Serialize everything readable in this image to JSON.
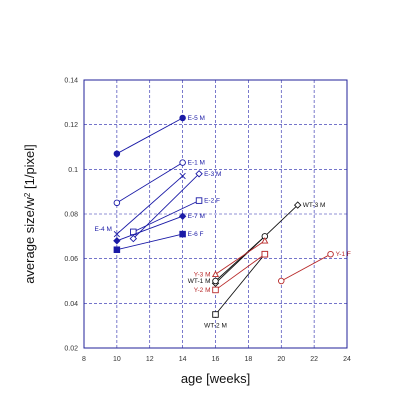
{
  "chart_data": {
    "type": "scatter",
    "xlabel": "age [weeks]",
    "ylabel": "average size/w",
    "ylabel_superscript": "2",
    "ylabel_unit": " [1/pixel]",
    "xlim": [
      8,
      24
    ],
    "ylim": [
      0.02,
      0.14
    ],
    "x_ticks": [
      8,
      10,
      12,
      14,
      16,
      18,
      20,
      22,
      24
    ],
    "y_ticks": [
      0.02,
      0.04,
      0.06,
      0.08,
      0.1,
      0.12,
      0.14
    ],
    "x_tick_labels": [
      "8",
      "10",
      "12",
      "14",
      "16",
      "18",
      "20",
      "22",
      "24"
    ],
    "y_tick_labels": [
      "0.02",
      "0.04",
      "0.06",
      "0.08",
      "0.1",
      "0.12",
      "0.14"
    ],
    "grid": true,
    "series": [
      {
        "name": "E-5 M",
        "color": "#1a1aa6",
        "marker": "filled-circle",
        "x": [
          10,
          14
        ],
        "y": [
          0.107,
          0.123
        ],
        "label_anchor": "end"
      },
      {
        "name": "E-1 M",
        "color": "#1a1aa6",
        "marker": "open-circle",
        "x": [
          10,
          14
        ],
        "y": [
          0.085,
          0.103
        ],
        "label_anchor": "end"
      },
      {
        "name": "E-3 M",
        "color": "#1a1aa6",
        "marker": "open-diamond",
        "x": [
          11,
          15
        ],
        "y": [
          0.069,
          0.098
        ],
        "label_anchor": "end"
      },
      {
        "name": "E-4 M",
        "color": "#1a1aa6",
        "marker": "cross",
        "x": [
          10,
          14
        ],
        "y": [
          0.071,
          0.097
        ],
        "label_anchor": "start"
      },
      {
        "name": "E-2 F",
        "color": "#1a1aa6",
        "marker": "open-square",
        "x": [
          11,
          15
        ],
        "y": [
          0.072,
          0.086
        ],
        "label_anchor": "end"
      },
      {
        "name": "E-7 M",
        "color": "#1a1aa6",
        "marker": "filled-diamond",
        "x": [
          10,
          14
        ],
        "y": [
          0.068,
          0.079
        ],
        "label_anchor": "end"
      },
      {
        "name": "E-6 F",
        "color": "#1a1aa6",
        "marker": "filled-square",
        "x": [
          10,
          14
        ],
        "y": [
          0.064,
          0.071
        ],
        "label_anchor": "end"
      },
      {
        "name": "WT-3 M",
        "color": "#111111",
        "marker": "open-diamond",
        "x": [
          16,
          21
        ],
        "y": [
          0.049,
          0.084
        ],
        "label_anchor": "end"
      },
      {
        "name": "WT-1 M",
        "color": "#111111",
        "marker": "open-circle",
        "x": [
          16,
          19
        ],
        "y": [
          0.05,
          0.07
        ],
        "label_anchor": "start"
      },
      {
        "name": "WT-2 M",
        "color": "#111111",
        "marker": "open-square",
        "x": [
          16,
          19
        ],
        "y": [
          0.035,
          0.062
        ],
        "label_anchor": "end"
      },
      {
        "name": "Y-3 M",
        "color": "#b82a2a",
        "marker": "open-triangle",
        "x": [
          16,
          19
        ],
        "y": [
          0.053,
          0.068
        ],
        "label_anchor": "start"
      },
      {
        "name": "Y-2 M",
        "color": "#b82a2a",
        "marker": "open-square",
        "x": [
          16,
          19
        ],
        "y": [
          0.046,
          0.062
        ],
        "label_anchor": "start"
      },
      {
        "name": "Y-1 F",
        "color": "#b82a2a",
        "marker": "open-circle",
        "x": [
          20,
          23
        ],
        "y": [
          0.05,
          0.062
        ],
        "label_anchor": "end"
      }
    ]
  }
}
